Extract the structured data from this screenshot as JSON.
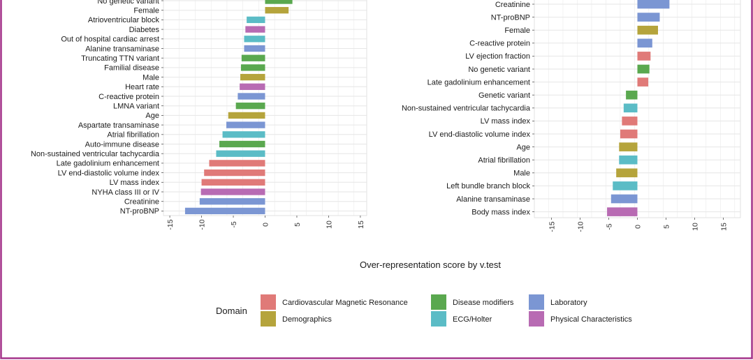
{
  "colors": {
    "frame_border": "#a4338a",
    "panel_bg": "#ffffff",
    "grid": "#e6e6e6",
    "Cardiovascular Magnetic Resonance": "#e07a78",
    "Demographics": "#b5a43c",
    "Disease modifiers": "#5aa84f",
    "ECG/Holter": "#5bbcc6",
    "Laboratory": "#7b96d3",
    "Physical Characteristics": "#b86bb3"
  },
  "chart_data": [
    {
      "type": "bar",
      "orientation": "horizontal",
      "xlim": [
        -16,
        16
      ],
      "x_ticks": [
        -15,
        -10,
        -5,
        0,
        5,
        10,
        15
      ],
      "grid": true,
      "bars": [
        {
          "category": "No genetic variant",
          "value": 4.3,
          "domain": "Disease modifiers"
        },
        {
          "category": "Female",
          "value": 3.7,
          "domain": "Demographics"
        },
        {
          "category": "Atrioventricular block",
          "value": -2.9,
          "domain": "ECG/Holter"
        },
        {
          "category": "Diabetes",
          "value": -3.1,
          "domain": "Physical Characteristics"
        },
        {
          "category": "Out of hospital cardiac arrest",
          "value": -3.3,
          "domain": "ECG/Holter"
        },
        {
          "category": "Alanine transaminase",
          "value": -3.3,
          "domain": "Laboratory"
        },
        {
          "category": "Truncating TTN variant",
          "value": -3.7,
          "domain": "Disease modifiers"
        },
        {
          "category": "Familial disease",
          "value": -3.8,
          "domain": "Disease modifiers"
        },
        {
          "category": "Male",
          "value": -3.9,
          "domain": "Demographics"
        },
        {
          "category": "Heart rate",
          "value": -4.0,
          "domain": "Physical Characteristics"
        },
        {
          "category": "C-reactive protein",
          "value": -4.3,
          "domain": "Laboratory"
        },
        {
          "category": "LMNA variant",
          "value": -4.6,
          "domain": "Disease modifiers"
        },
        {
          "category": "Age",
          "value": -5.8,
          "domain": "Demographics"
        },
        {
          "category": "Aspartate transaminase",
          "value": -6.1,
          "domain": "Laboratory"
        },
        {
          "category": "Atrial fibrillation",
          "value": -6.7,
          "domain": "ECG/Holter"
        },
        {
          "category": "Auto-immune disease",
          "value": -7.2,
          "domain": "Disease modifiers"
        },
        {
          "category": "Non-sustained ventricular tachycardia",
          "value": -7.7,
          "domain": "ECG/Holter"
        },
        {
          "category": "Late gadolinium enhancement",
          "value": -8.8,
          "domain": "Cardiovascular Magnetic Resonance"
        },
        {
          "category": "LV end-diastolic volume index",
          "value": -9.6,
          "domain": "Cardiovascular Magnetic Resonance"
        },
        {
          "category": "LV mass index",
          "value": -10.0,
          "domain": "Cardiovascular Magnetic Resonance"
        },
        {
          "category": "NYHA class III or IV",
          "value": -10.1,
          "domain": "Physical Characteristics"
        },
        {
          "category": "Creatinine",
          "value": -10.3,
          "domain": "Laboratory"
        },
        {
          "category": "NT-proBNP",
          "value": -12.6,
          "domain": "Laboratory"
        }
      ]
    },
    {
      "type": "bar",
      "orientation": "horizontal",
      "xlim": [
        -18,
        18
      ],
      "x_ticks": [
        -15,
        -10,
        -5,
        0,
        5,
        10,
        15
      ],
      "grid": true,
      "bars": [
        {
          "category": "Creatinine",
          "value": 5.6,
          "domain": "Laboratory"
        },
        {
          "category": "NT-proBNP",
          "value": 3.9,
          "domain": "Laboratory"
        },
        {
          "category": "Female",
          "value": 3.6,
          "domain": "Demographics"
        },
        {
          "category": "C-reactive protein",
          "value": 2.6,
          "domain": "Laboratory"
        },
        {
          "category": "LV ejection fraction",
          "value": 2.3,
          "domain": "Cardiovascular Magnetic Resonance"
        },
        {
          "category": "No genetic variant",
          "value": 2.1,
          "domain": "Disease modifiers"
        },
        {
          "category": "Late gadolinium enhancement",
          "value": 1.9,
          "domain": "Cardiovascular Magnetic Resonance"
        },
        {
          "category": "Genetic variant",
          "value": -2.0,
          "domain": "Disease modifiers"
        },
        {
          "category": "Non-sustained ventricular tachycardia",
          "value": -2.4,
          "domain": "ECG/Holter"
        },
        {
          "category": "LV mass index",
          "value": -2.7,
          "domain": "Cardiovascular Magnetic Resonance"
        },
        {
          "category": "LV end-diastolic volume index",
          "value": -3.0,
          "domain": "Cardiovascular Magnetic Resonance"
        },
        {
          "category": "Age",
          "value": -3.2,
          "domain": "Demographics"
        },
        {
          "category": "Atrial fibrillation",
          "value": -3.2,
          "domain": "ECG/Holter"
        },
        {
          "category": "Male",
          "value": -3.7,
          "domain": "Demographics"
        },
        {
          "category": "Left bundle branch block",
          "value": -4.3,
          "domain": "ECG/Holter"
        },
        {
          "category": "Alanine transaminase",
          "value": -4.6,
          "domain": "Laboratory"
        },
        {
          "category": "Body mass index",
          "value": -5.3,
          "domain": "Physical Characteristics"
        }
      ]
    }
  ],
  "xlabel": "Over-representation score by v.test",
  "legend": {
    "title": "Domain",
    "placement": "bottom",
    "items": [
      {
        "label": "Cardiovascular Magnetic Resonance",
        "color": "#e07a78"
      },
      {
        "label": "Demographics",
        "color": "#b5a43c"
      },
      {
        "label": "Disease modifiers",
        "color": "#5aa84f"
      },
      {
        "label": "ECG/Holter",
        "color": "#5bbcc6"
      },
      {
        "label": "Laboratory",
        "color": "#7b96d3"
      },
      {
        "label": "Physical Characteristics",
        "color": "#b86bb3"
      }
    ]
  }
}
